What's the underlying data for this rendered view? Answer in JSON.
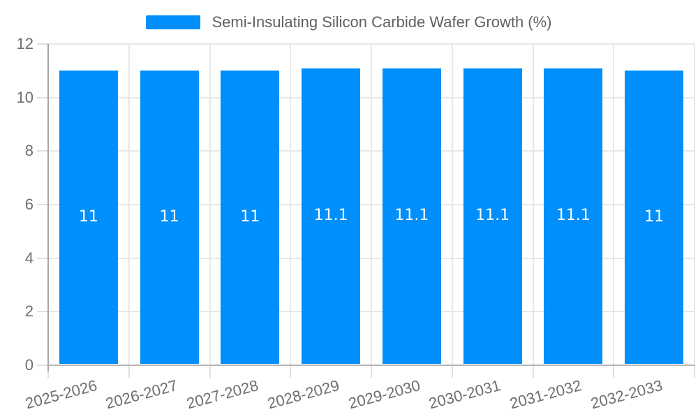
{
  "chart_data": {
    "type": "bar",
    "title": "Semi-Insulating Silicon Carbide Wafer Growth (%)",
    "categories": [
      "2025-2026",
      "2026-2027",
      "2027-2028",
      "2028-2029",
      "2029-2030",
      "2030-2031",
      "2031-2032",
      "2032-2033"
    ],
    "series": [
      {
        "name": "Semi-Insulating Silicon Carbide Wafer Growth (%)",
        "values": [
          11,
          11,
          11,
          11.1,
          11.1,
          11.1,
          11.1,
          11
        ]
      }
    ],
    "data_labels": [
      "11",
      "11",
      "11",
      "11.1",
      "11.1",
      "11.1",
      "11.1",
      "11"
    ],
    "xlabel": "",
    "ylabel": "",
    "ylim": [
      0,
      12
    ],
    "yticks": [
      0,
      2,
      4,
      6,
      8,
      10,
      12
    ],
    "grid": "on",
    "legend_position": "top",
    "x_label_rotation_deg": -15,
    "colors": {
      "bar": "#008FFB",
      "grid": "#e7e7e7",
      "tick": "#e0e0e0",
      "y_axis_line": "#a6a6a6",
      "x_axis_line": "#b6b6b6",
      "axis_label_text": "#6e6e6e",
      "legend_text": "#616161",
      "data_label_text": "#ffffff",
      "background": "#ffffff"
    }
  }
}
